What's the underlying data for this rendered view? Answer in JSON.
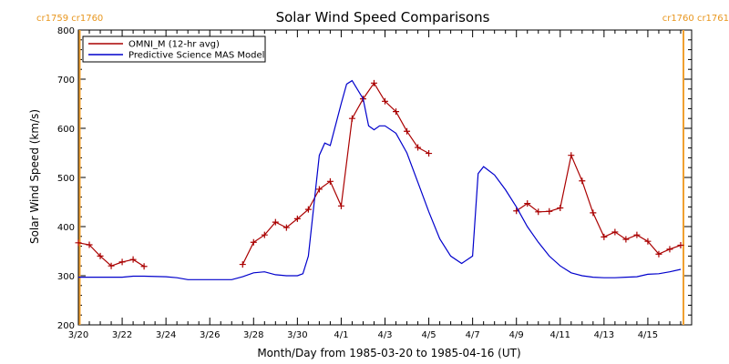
{
  "chart_data": {
    "type": "line",
    "title": "Solar Wind Speed Comparisons",
    "xlabel": "Month/Day from 1985-03-20 to 1985-04-16 (UT)",
    "ylabel": "Solar Wind Speed (km/s)",
    "xlim": [
      "1985-03-20",
      "1985-04-16"
    ],
    "ylim": [
      200,
      800
    ],
    "x_ticks": [
      "3/20",
      "3/22",
      "3/24",
      "3/26",
      "3/28",
      "3/30",
      "4/1",
      "4/3",
      "4/5",
      "4/7",
      "4/9",
      "4/11",
      "4/13",
      "4/15"
    ],
    "y_ticks": [
      200,
      300,
      400,
      500,
      600,
      700,
      800
    ],
    "rotation_markers": {
      "left": "cr1759 cr1760",
      "right": "cr1760 cr1761",
      "color": "#f0a030"
    },
    "legend_position": "top-left",
    "series": [
      {
        "name": "OMNI_M (12-hr avg)",
        "color": "#aa0000",
        "marker": "plus",
        "x": [
          "1985-03-20 00:00",
          "1985-03-20 12:00",
          "1985-03-21 00:00",
          "1985-03-21 12:00",
          "1985-03-22 00:00",
          "1985-03-22 12:00",
          "1985-03-23 00:00",
          null,
          "1985-03-27 12:00",
          "1985-03-28 00:00",
          "1985-03-28 12:00",
          "1985-03-29 00:00",
          "1985-03-29 12:00",
          "1985-03-30 00:00",
          "1985-03-30 12:00",
          "1985-03-31 00:00",
          "1985-03-31 12:00",
          "1985-04-01 00:00",
          "1985-04-01 12:00",
          "1985-04-02 00:00",
          "1985-04-02 12:00",
          "1985-04-03 00:00",
          "1985-04-03 12:00",
          "1985-04-04 00:00",
          "1985-04-04 12:00",
          "1985-04-05 00:00",
          null,
          "1985-04-09 00:00",
          "1985-04-09 12:00",
          "1985-04-10 00:00",
          "1985-04-10 12:00",
          "1985-04-11 00:00",
          "1985-04-11 12:00",
          "1985-04-12 00:00",
          "1985-04-12 12:00",
          "1985-04-13 00:00",
          "1985-04-13 12:00",
          "1985-04-14 00:00",
          "1985-04-14 12:00",
          "1985-04-15 00:00",
          "1985-04-15 12:00",
          "1985-04-16 00:00",
          "1985-04-16 12:00"
        ],
        "values": [
          367,
          363,
          340,
          320,
          328,
          333,
          319,
          null,
          323,
          368,
          383,
          409,
          398,
          416,
          435,
          476,
          492,
          442,
          620,
          660,
          692,
          655,
          634,
          594,
          561,
          549,
          null,
          432,
          447,
          430,
          431,
          438,
          545,
          493,
          428,
          379,
          389,
          374,
          383,
          370,
          344,
          354,
          362
        ]
      },
      {
        "name": "Predictive Science MAS Model",
        "color": "#0000cc",
        "x": [
          "1985-03-20 00:00",
          "1985-03-21 00:00",
          "1985-03-22 00:00",
          "1985-03-22 12:00",
          "1985-03-23 00:00",
          "1985-03-24 00:00",
          "1985-03-24 12:00",
          "1985-03-25 00:00",
          "1985-03-26 00:00",
          "1985-03-27 00:00",
          "1985-03-27 12:00",
          "1985-03-28 00:00",
          "1985-03-28 12:00",
          "1985-03-29 00:00",
          "1985-03-29 12:00",
          "1985-03-30 00:00",
          "1985-03-30 06:00",
          "1985-03-30 12:00",
          "1985-03-31 00:00",
          "1985-03-31 06:00",
          "1985-03-31 12:00",
          "1985-04-01 00:00",
          "1985-04-01 06:00",
          "1985-04-01 12:00",
          "1985-04-02 00:00",
          "1985-04-02 06:00",
          "1985-04-02 12:00",
          "1985-04-02 18:00",
          "1985-04-03 00:00",
          "1985-04-03 12:00",
          "1985-04-04 00:00",
          "1985-04-04 12:00",
          "1985-04-05 00:00",
          "1985-04-05 12:00",
          "1985-04-06 00:00",
          "1985-04-06 12:00",
          "1985-04-07 00:00",
          "1985-04-07 06:00",
          "1985-04-07 12:00",
          "1985-04-08 00:00",
          "1985-04-08 12:00",
          "1985-04-09 00:00",
          "1985-04-09 12:00",
          "1985-04-10 00:00",
          "1985-04-10 12:00",
          "1985-04-11 00:00",
          "1985-04-11 12:00",
          "1985-04-12 00:00",
          "1985-04-12 12:00",
          "1985-04-13 00:00",
          "1985-04-13 12:00",
          "1985-04-14 00:00",
          "1985-04-14 12:00",
          "1985-04-15 00:00",
          "1985-04-15 12:00",
          "1985-04-16 00:00",
          "1985-04-16 12:00"
        ],
        "values": [
          297,
          297,
          297,
          299,
          299,
          298,
          296,
          292,
          292,
          292,
          298,
          306,
          308,
          302,
          300,
          300,
          304,
          340,
          545,
          570,
          565,
          650,
          690,
          697,
          660,
          605,
          597,
          605,
          605,
          590,
          550,
          490,
          430,
          375,
          340,
          325,
          340,
          508,
          522,
          505,
          475,
          440,
          400,
          368,
          340,
          320,
          306,
          300,
          297,
          296,
          296,
          297,
          298,
          303,
          304,
          308,
          313
        ]
      }
    ]
  }
}
